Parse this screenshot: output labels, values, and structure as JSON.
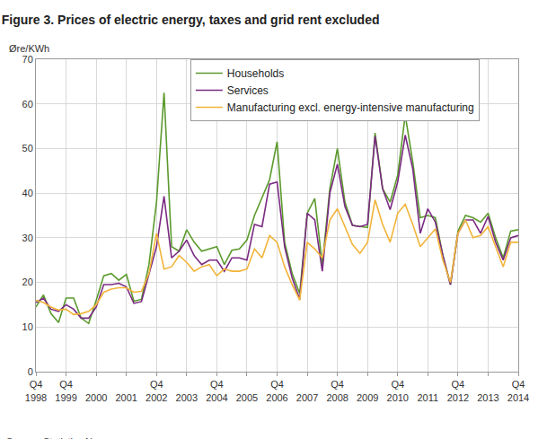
{
  "chart_data": {
    "type": "line",
    "title": "Figure 3. Prices of electric energy, taxes and grid rent excluded",
    "ylabel": "Øre/KWh",
    "annotations": [
      "Source: Statistics Norway."
    ],
    "categories": [
      "Q4 1998",
      null,
      null,
      null,
      "Q4 1999",
      null,
      null,
      null,
      "2000",
      null,
      null,
      null,
      "2001",
      null,
      null,
      null,
      "Q4 2002",
      null,
      null,
      null,
      "2003",
      null,
      null,
      null,
      "Q4 2004",
      null,
      null,
      null,
      "2005",
      null,
      null,
      null,
      "Q4 2006",
      null,
      null,
      null,
      "2007",
      null,
      null,
      null,
      "Q4 2008",
      null,
      null,
      null,
      "2009",
      null,
      null,
      null,
      "Q4 2010",
      null,
      null,
      null,
      "2011",
      null,
      null,
      null,
      "Q4 2012",
      null,
      null,
      null,
      "2013",
      null,
      null,
      null,
      "Q4 2014"
    ],
    "series": [
      {
        "name": "Households",
        "color": "#5b9a2c",
        "values": [
          14.5,
          17.2,
          13,
          11,
          16.5,
          16.5,
          12,
          10.8,
          16,
          21.5,
          22,
          20.5,
          21.8,
          15.8,
          16.2,
          24,
          38,
          62.5,
          28,
          27,
          31.8,
          29,
          27,
          27.5,
          28,
          24,
          27.2,
          27.5,
          29.5,
          35,
          39,
          43,
          51.5,
          29,
          22,
          17.5,
          35.5,
          38.8,
          24,
          41,
          50,
          38,
          32.8,
          32.5,
          32.3,
          53.5,
          41,
          38,
          44,
          57.5,
          47,
          34.5,
          35,
          34.5,
          26,
          19.5,
          31.5,
          35,
          34.5,
          33.5,
          35.5,
          30,
          25.5,
          31.5,
          31.8
        ]
      },
      {
        "name": "Services",
        "color": "#7a2a82",
        "values": [
          15.5,
          16.5,
          14,
          13.5,
          15,
          14,
          12,
          12,
          14.5,
          19.5,
          19.5,
          19.8,
          19,
          15.3,
          15.7,
          22,
          28,
          39.3,
          25.5,
          27,
          29.5,
          26,
          24,
          25,
          25,
          22.5,
          25.5,
          25.5,
          25,
          33,
          32.5,
          42,
          42.5,
          28,
          21,
          16.2,
          35.5,
          34,
          22.5,
          40,
          46.5,
          37,
          32.8,
          32.5,
          33,
          52.8,
          41,
          36.3,
          42.5,
          53,
          45.5,
          31,
          36.5,
          33.5,
          26,
          19.5,
          31,
          34,
          34,
          31,
          34.8,
          29,
          25,
          30,
          30.5
        ]
      },
      {
        "name": "Manufacturing excl. energy-intensive manufacturing",
        "color": "#f2b43a",
        "values": [
          16,
          15.5,
          14.5,
          13.8,
          14,
          12.8,
          13,
          13.5,
          15,
          17.8,
          18.5,
          18.8,
          18.8,
          17.8,
          18,
          22,
          31,
          23,
          23.5,
          26,
          24.5,
          22.5,
          23.5,
          24,
          21.5,
          23,
          22.5,
          22.5,
          23,
          27.5,
          25.5,
          30.5,
          29,
          23.5,
          19.5,
          16,
          29,
          27.5,
          25.5,
          34,
          36.5,
          32.5,
          28.5,
          26.5,
          29,
          38.5,
          33,
          29,
          35.5,
          37.5,
          33,
          28,
          30,
          32,
          25,
          20,
          31,
          34,
          30,
          30.5,
          32.5,
          28,
          23.5,
          29,
          29
        ]
      }
    ],
    "ylim": [
      0,
      70
    ],
    "yticks": [
      0,
      10,
      20,
      30,
      40,
      50,
      60,
      70
    ],
    "grid": true,
    "legend": "top"
  }
}
